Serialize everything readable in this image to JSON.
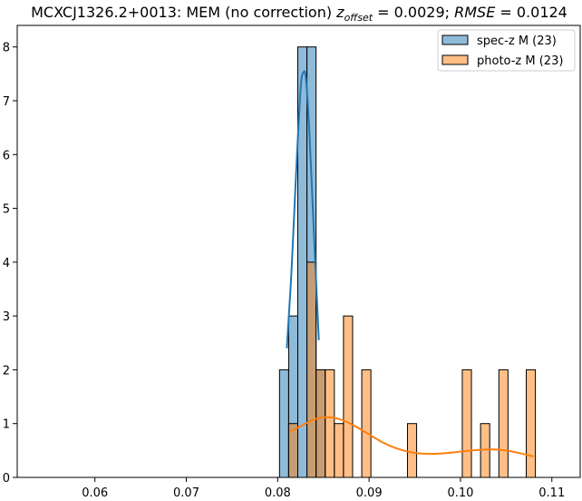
{
  "chart_data": {
    "type": "bar",
    "title": {
      "prefix": "MCXCJ1326.2+0013: MEM (no correction) ",
      "z_symbol": "z",
      "z_sub": "offset",
      "z_value": " = 0.0029; ",
      "rmse_symbol": "RMSE",
      "rmse_value": " = 0.0124"
    },
    "xlim": [
      0.0515,
      0.1131
    ],
    "ylim": [
      0,
      8.4
    ],
    "x_ticks": [
      "0.06",
      "0.07",
      "0.08",
      "0.09",
      "0.10",
      "0.11"
    ],
    "x_tick_values": [
      0.06,
      0.07,
      0.08,
      0.09,
      0.1,
      0.11
    ],
    "y_ticks": [
      "0",
      "1",
      "2",
      "3",
      "4",
      "5",
      "6",
      "7",
      "8"
    ],
    "y_tick_values": [
      0,
      1,
      2,
      3,
      4,
      5,
      6,
      7,
      8
    ],
    "legend_position": "top-right",
    "series": [
      {
        "name": "spec-z M (23)",
        "color": "#1f77b4",
        "bins": [
          {
            "x0": 0.0802,
            "x1": 0.0812,
            "count": 2
          },
          {
            "x0": 0.0812,
            "x1": 0.0822,
            "count": 3
          },
          {
            "x0": 0.0822,
            "x1": 0.0832,
            "count": 8
          },
          {
            "x0": 0.0832,
            "x1": 0.0842,
            "count": 8
          },
          {
            "x0": 0.0842,
            "x1": 0.0852,
            "count": 2
          }
        ],
        "kde": [
          [
            0.081,
            2.4
          ],
          [
            0.0815,
            3.8
          ],
          [
            0.082,
            5.6
          ],
          [
            0.0825,
            7.2
          ],
          [
            0.0828,
            7.52
          ],
          [
            0.0831,
            7.4
          ],
          [
            0.0835,
            6.3
          ],
          [
            0.084,
            4.4
          ],
          [
            0.0845,
            2.55
          ]
        ]
      },
      {
        "name": "photo-z M (23)",
        "color": "#ff7f0e",
        "bins": [
          {
            "x0": 0.0812,
            "x1": 0.0822,
            "count": 1
          },
          {
            "x0": 0.0832,
            "x1": 0.0842,
            "count": 4
          },
          {
            "x0": 0.0842,
            "x1": 0.0852,
            "count": 2
          },
          {
            "x0": 0.0852,
            "x1": 0.0862,
            "count": 2
          },
          {
            "x0": 0.0862,
            "x1": 0.0872,
            "count": 1
          },
          {
            "x0": 0.0872,
            "x1": 0.0882,
            "count": 3
          },
          {
            "x0": 0.0892,
            "x1": 0.0902,
            "count": 2
          },
          {
            "x0": 0.0942,
            "x1": 0.0952,
            "count": 1
          },
          {
            "x0": 0.1002,
            "x1": 0.1012,
            "count": 2
          },
          {
            "x0": 0.1022,
            "x1": 0.1032,
            "count": 1
          },
          {
            "x0": 0.1042,
            "x1": 0.1052,
            "count": 2
          },
          {
            "x0": 0.1072,
            "x1": 0.1082,
            "count": 2
          }
        ],
        "kde": [
          [
            0.0813,
            0.85
          ],
          [
            0.0825,
            0.95
          ],
          [
            0.084,
            1.08
          ],
          [
            0.0855,
            1.12
          ],
          [
            0.087,
            1.07
          ],
          [
            0.0885,
            0.95
          ],
          [
            0.09,
            0.8
          ],
          [
            0.0915,
            0.65
          ],
          [
            0.093,
            0.54
          ],
          [
            0.0945,
            0.47
          ],
          [
            0.096,
            0.44
          ],
          [
            0.0975,
            0.44
          ],
          [
            0.099,
            0.46
          ],
          [
            0.1005,
            0.49
          ],
          [
            0.102,
            0.51
          ],
          [
            0.1035,
            0.52
          ],
          [
            0.105,
            0.5
          ],
          [
            0.1065,
            0.45
          ],
          [
            0.108,
            0.39
          ]
        ]
      }
    ]
  }
}
